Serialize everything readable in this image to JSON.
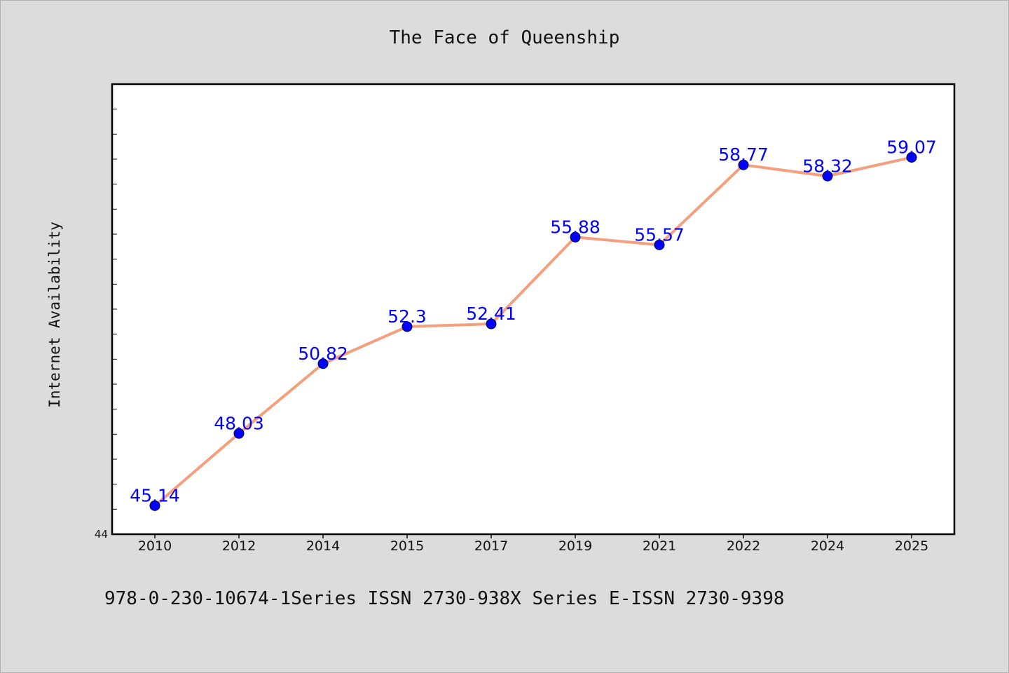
{
  "chart_data": {
    "type": "line",
    "title": "The Face of Queenship",
    "xlabel": "",
    "ylabel": "Internet Availability",
    "categories": [
      "2010",
      "2012",
      "2014",
      "2015",
      "2017",
      "2019",
      "2021",
      "2022",
      "2024",
      "2025"
    ],
    "series": [
      {
        "values": [
          45.14,
          48.03,
          50.82,
          52.3,
          52.41,
          55.88,
          55.57,
          58.77,
          58.32,
          59.07
        ]
      }
    ],
    "ylim": [
      44,
      62
    ],
    "y_tick_labels": [
      "44"
    ],
    "line_color": "#f4a07e",
    "marker_color": "#0000ff",
    "label_color": "#0000ff",
    "grid": false,
    "footer": "978-0-230-10674-1Series ISSN 2730-938X Series E-ISSN 2730-9398"
  }
}
